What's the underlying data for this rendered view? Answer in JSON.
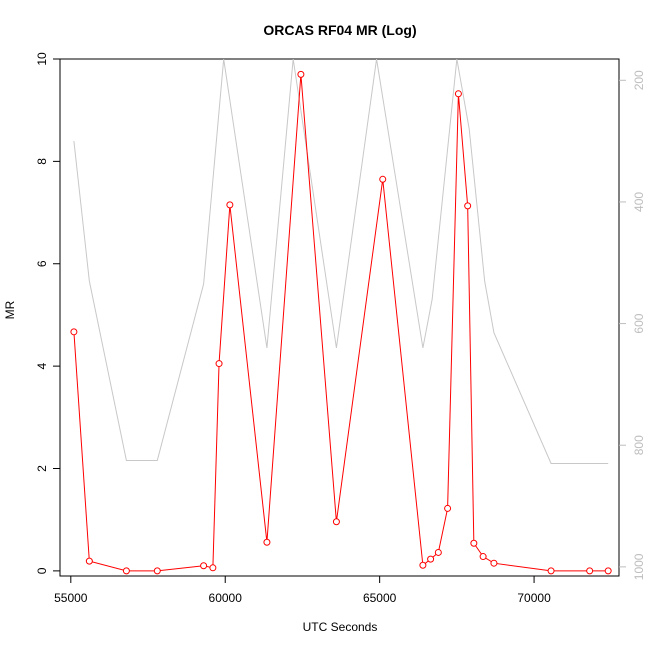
{
  "chart_data": {
    "type": "line",
    "title": "ORCAS RF04 MR (Log)",
    "xlabel": "UTC Seconds",
    "ylabel": "MR",
    "xlim": [
      54650,
      72750
    ],
    "ylim": [
      -0.1,
      10
    ],
    "x_ticks": [
      55000,
      60000,
      65000,
      70000
    ],
    "y_ticks": [
      0,
      2,
      4,
      6,
      8,
      10
    ],
    "y2lim": [
      1015,
      165
    ],
    "y2_ticks": [
      200,
      400,
      600,
      800,
      1000
    ],
    "grid": false,
    "series": [
      {
        "color": "#ff0000",
        "axis": "left",
        "marker": "open-circle",
        "x": [
          55100,
          55600,
          56800,
          57800,
          59300,
          59600,
          59800,
          60150,
          61350,
          62450,
          63600,
          65100,
          66400,
          66650,
          66900,
          67200,
          67550,
          67850,
          68050,
          68350,
          68700,
          70550,
          71800,
          72400
        ],
        "y": [
          4.67,
          0.19,
          0.0,
          0.0,
          0.1,
          0.06,
          4.05,
          7.15,
          0.56,
          9.7,
          0.96,
          7.65,
          0.11,
          0.23,
          0.36,
          1.22,
          9.32,
          7.13,
          0.54,
          0.28,
          0.15,
          0.0,
          0.0,
          0.0
        ]
      },
      {
        "color": "#c8c8c8",
        "axis": "right",
        "x": [
          55100,
          55600,
          56800,
          57800,
          59300,
          59950,
          61350,
          62200,
          63600,
          64900,
          66400,
          66700,
          67500,
          67900,
          68400,
          68700,
          70550,
          72400
        ],
        "y": [
          300,
          530,
          825,
          825,
          535,
          165,
          640,
          165,
          640,
          165,
          640,
          560,
          165,
          280,
          530,
          615,
          830,
          830
        ]
      }
    ]
  }
}
